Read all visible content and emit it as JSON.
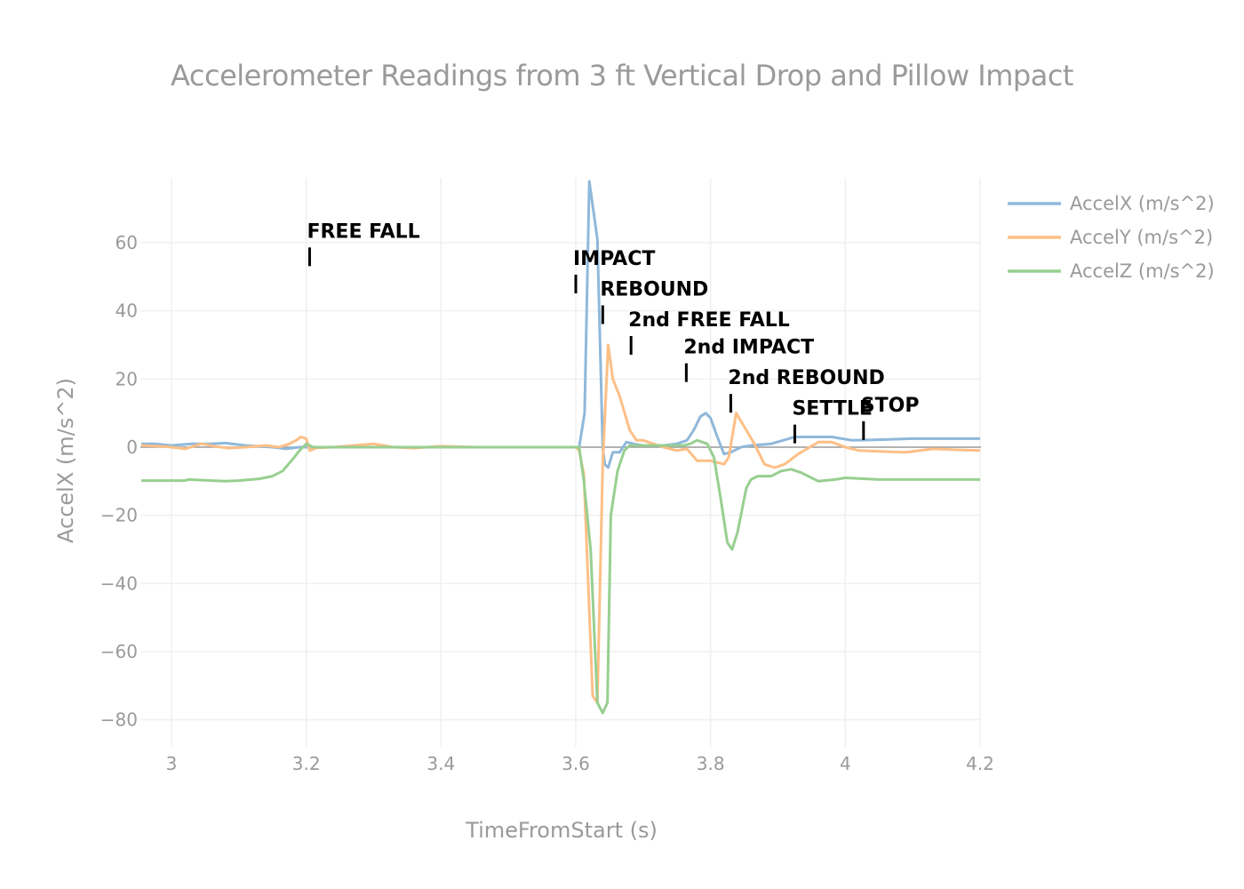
{
  "chart_data": {
    "type": "line",
    "title": "Accelerometer Readings from 3 ft Vertical Drop and Pillow Impact",
    "xlabel": "TimeFromStart (s)",
    "ylabel": "AccelX (m/s^2)",
    "xlim": [
      2.955,
      4.2
    ],
    "ylim": [
      -88,
      79
    ],
    "x_ticks": [
      3,
      3.2,
      3.4,
      3.6,
      3.8,
      4,
      4.2
    ],
    "x_tick_labels": [
      "3",
      "3.2",
      "3.4",
      "3.6",
      "3.8",
      "4",
      "4.2"
    ],
    "y_ticks": [
      -80,
      -60,
      -40,
      -20,
      0,
      20,
      40,
      60
    ],
    "y_tick_labels": [
      "−80",
      "−60",
      "−40",
      "−20",
      "0",
      "20",
      "40",
      "60"
    ],
    "grid": true,
    "legend_position": "right-top",
    "series": [
      {
        "name": "AccelX (m/s^2)",
        "color": "#8fb8da",
        "points": [
          [
            2.955,
            1
          ],
          [
            2.975,
            1
          ],
          [
            3.0,
            0.5
          ],
          [
            3.03,
            1
          ],
          [
            3.06,
            1
          ],
          [
            3.08,
            1.2
          ],
          [
            3.11,
            0.5
          ],
          [
            3.15,
            0
          ],
          [
            3.17,
            -0.5
          ],
          [
            3.19,
            0
          ],
          [
            3.21,
            0
          ],
          [
            3.25,
            0
          ],
          [
            3.3,
            0
          ],
          [
            3.4,
            0
          ],
          [
            3.5,
            0
          ],
          [
            3.6,
            0
          ],
          [
            3.605,
            0
          ],
          [
            3.613,
            10
          ],
          [
            3.62,
            78
          ],
          [
            3.632,
            61
          ],
          [
            3.64,
            0
          ],
          [
            3.643,
            -5
          ],
          [
            3.648,
            -6
          ],
          [
            3.655,
            -1.5
          ],
          [
            3.665,
            -1.5
          ],
          [
            3.675,
            1.5
          ],
          [
            3.69,
            0.8
          ],
          [
            3.7,
            0.5
          ],
          [
            3.73,
            0.5
          ],
          [
            3.75,
            1
          ],
          [
            3.765,
            2
          ],
          [
            3.775,
            5
          ],
          [
            3.785,
            9
          ],
          [
            3.793,
            10
          ],
          [
            3.8,
            8.5
          ],
          [
            3.81,
            3
          ],
          [
            3.82,
            -2
          ],
          [
            3.83,
            -1.5
          ],
          [
            3.845,
            0
          ],
          [
            3.86,
            0.5
          ],
          [
            3.89,
            1
          ],
          [
            3.925,
            3
          ],
          [
            3.95,
            3
          ],
          [
            3.98,
            3
          ],
          [
            4.01,
            2
          ],
          [
            4.05,
            2.2
          ],
          [
            4.1,
            2.5
          ],
          [
            4.2,
            2.5
          ]
        ]
      },
      {
        "name": "AccelY (m/s^2)",
        "color": "#fdbf86",
        "points": [
          [
            2.955,
            0.5
          ],
          [
            2.98,
            0.3
          ],
          [
            3.0,
            0
          ],
          [
            3.02,
            -0.5
          ],
          [
            3.045,
            1
          ],
          [
            3.065,
            0.2
          ],
          [
            3.085,
            -0.3
          ],
          [
            3.11,
            0
          ],
          [
            3.14,
            0.5
          ],
          [
            3.16,
            0
          ],
          [
            3.175,
            1
          ],
          [
            3.185,
            2
          ],
          [
            3.192,
            3
          ],
          [
            3.2,
            2.5
          ],
          [
            3.205,
            -1
          ],
          [
            3.215,
            -0.2
          ],
          [
            3.24,
            0
          ],
          [
            3.27,
            0.5
          ],
          [
            3.3,
            1
          ],
          [
            3.33,
            0
          ],
          [
            3.36,
            -0.3
          ],
          [
            3.4,
            0.3
          ],
          [
            3.45,
            0
          ],
          [
            3.5,
            0
          ],
          [
            3.55,
            0
          ],
          [
            3.6,
            0
          ],
          [
            3.605,
            -1
          ],
          [
            3.612,
            -8
          ],
          [
            3.625,
            -73
          ],
          [
            3.632,
            -75
          ],
          [
            3.64,
            -5
          ],
          [
            3.648,
            30
          ],
          [
            3.655,
            20
          ],
          [
            3.665,
            15
          ],
          [
            3.68,
            5
          ],
          [
            3.69,
            2
          ],
          [
            3.7,
            2
          ],
          [
            3.715,
            1
          ],
          [
            3.73,
            0
          ],
          [
            3.75,
            -1
          ],
          [
            3.765,
            -0.5
          ],
          [
            3.78,
            -4
          ],
          [
            3.8,
            -4
          ],
          [
            3.82,
            -5
          ],
          [
            3.827,
            -3
          ],
          [
            3.838,
            10
          ],
          [
            3.85,
            6
          ],
          [
            3.865,
            1
          ],
          [
            3.88,
            -5
          ],
          [
            3.895,
            -6
          ],
          [
            3.91,
            -5
          ],
          [
            3.93,
            -2
          ],
          [
            3.96,
            1.5
          ],
          [
            3.98,
            1.5
          ],
          [
            4.0,
            0
          ],
          [
            4.02,
            -1
          ],
          [
            4.06,
            -1.3
          ],
          [
            4.09,
            -1.5
          ],
          [
            4.13,
            -0.5
          ],
          [
            4.17,
            -0.8
          ],
          [
            4.2,
            -1
          ]
        ]
      },
      {
        "name": "AccelZ (m/s^2)",
        "color": "#98cf90",
        "points": [
          [
            2.955,
            -9.8
          ],
          [
            3.0,
            -9.8
          ],
          [
            3.02,
            -9.8
          ],
          [
            3.025,
            -9.5
          ],
          [
            3.06,
            -9.8
          ],
          [
            3.08,
            -10
          ],
          [
            3.1,
            -9.8
          ],
          [
            3.13,
            -9.3
          ],
          [
            3.15,
            -8.5
          ],
          [
            3.165,
            -7
          ],
          [
            3.18,
            -3.5
          ],
          [
            3.19,
            -1
          ],
          [
            3.2,
            1
          ],
          [
            3.21,
            0
          ],
          [
            3.25,
            0
          ],
          [
            3.3,
            0
          ],
          [
            3.4,
            0
          ],
          [
            3.5,
            0
          ],
          [
            3.6,
            0
          ],
          [
            3.605,
            0
          ],
          [
            3.612,
            -10
          ],
          [
            3.622,
            -30
          ],
          [
            3.632,
            -75
          ],
          [
            3.64,
            -78
          ],
          [
            3.647,
            -75
          ],
          [
            3.652,
            -20
          ],
          [
            3.662,
            -7
          ],
          [
            3.672,
            -1
          ],
          [
            3.68,
            0.5
          ],
          [
            3.72,
            0.5
          ],
          [
            3.76,
            0.5
          ],
          [
            3.77,
            1
          ],
          [
            3.78,
            2
          ],
          [
            3.795,
            1
          ],
          [
            3.805,
            -3
          ],
          [
            3.815,
            -15
          ],
          [
            3.825,
            -28
          ],
          [
            3.832,
            -30
          ],
          [
            3.84,
            -25
          ],
          [
            3.853,
            -12
          ],
          [
            3.86,
            -9.5
          ],
          [
            3.87,
            -8.5
          ],
          [
            3.89,
            -8.5
          ],
          [
            3.905,
            -7
          ],
          [
            3.92,
            -6.5
          ],
          [
            3.935,
            -7.5
          ],
          [
            3.95,
            -9
          ],
          [
            3.96,
            -10
          ],
          [
            3.985,
            -9.5
          ],
          [
            4.0,
            -9
          ],
          [
            4.05,
            -9.5
          ],
          [
            4.1,
            -9.5
          ],
          [
            4.2,
            -9.5
          ]
        ]
      }
    ],
    "annotations": [
      {
        "text": "FREE FALL",
        "x": 3.205,
        "y": 56
      },
      {
        "text": "IMPACT",
        "x": 3.6,
        "y": 48
      },
      {
        "text": "REBOUND",
        "x": 3.64,
        "y": 39
      },
      {
        "text": "2nd FREE FALL",
        "x": 3.682,
        "y": 30
      },
      {
        "text": "2nd IMPACT",
        "x": 3.764,
        "y": 22
      },
      {
        "text": "2nd REBOUND",
        "x": 3.83,
        "y": 13
      },
      {
        "text": "SETTLE",
        "x": 3.925,
        "y": 4
      },
      {
        "text": "STOP",
        "x": 4.027,
        "y": 5
      }
    ]
  },
  "legend": {
    "items": [
      {
        "label": "AccelX (m/s^2)",
        "color": "#8fb8da"
      },
      {
        "label": "AccelY (m/s^2)",
        "color": "#fdbf86"
      },
      {
        "label": "AccelZ (m/s^2)",
        "color": "#98cf90"
      }
    ]
  },
  "colors": {
    "text_muted": "#9a9a9a",
    "grid": "#f0f0f0",
    "zeroline": "#9a9a9a",
    "annotation": "#000000"
  }
}
